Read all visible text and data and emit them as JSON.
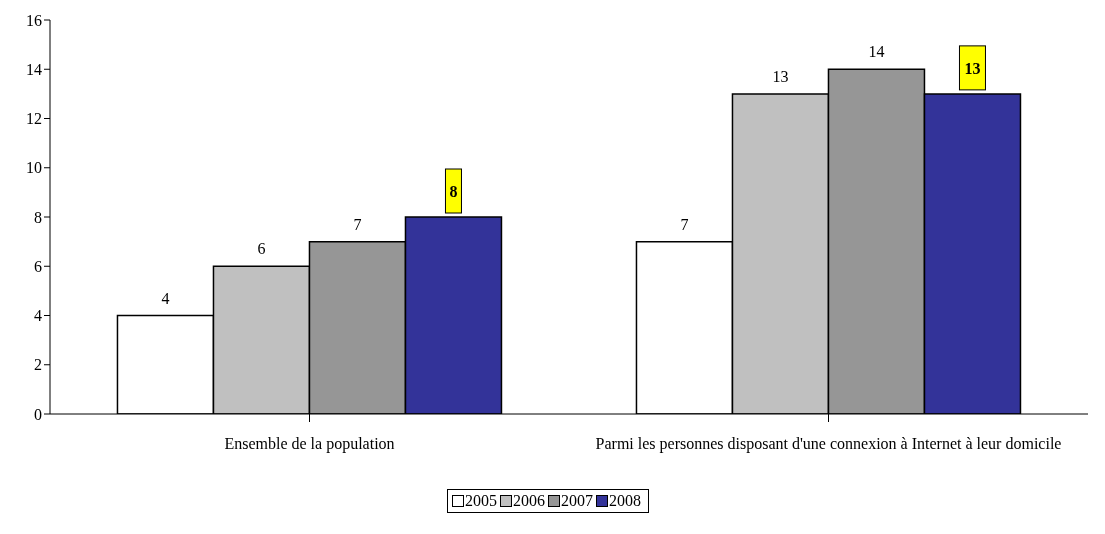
{
  "chart_data": {
    "type": "bar",
    "categories": [
      "Ensemble de la population",
      "Parmi les personnes disposant d'une connexion à Internet à leur domicile"
    ],
    "series": [
      {
        "name": "2005",
        "color": "#ffffff",
        "values": [
          4,
          7
        ]
      },
      {
        "name": "2006",
        "color": "#c0c0c0",
        "values": [
          6,
          13
        ]
      },
      {
        "name": "2007",
        "color": "#969696",
        "values": [
          7,
          14
        ]
      },
      {
        "name": "2008",
        "color": "#333399",
        "values": [
          8,
          13
        ]
      }
    ],
    "ylim": [
      0,
      16
    ],
    "yticks": [
      0,
      2,
      4,
      6,
      8,
      10,
      12,
      14,
      16
    ],
    "grid": false,
    "legend": "bottom",
    "data_labels": true
  }
}
